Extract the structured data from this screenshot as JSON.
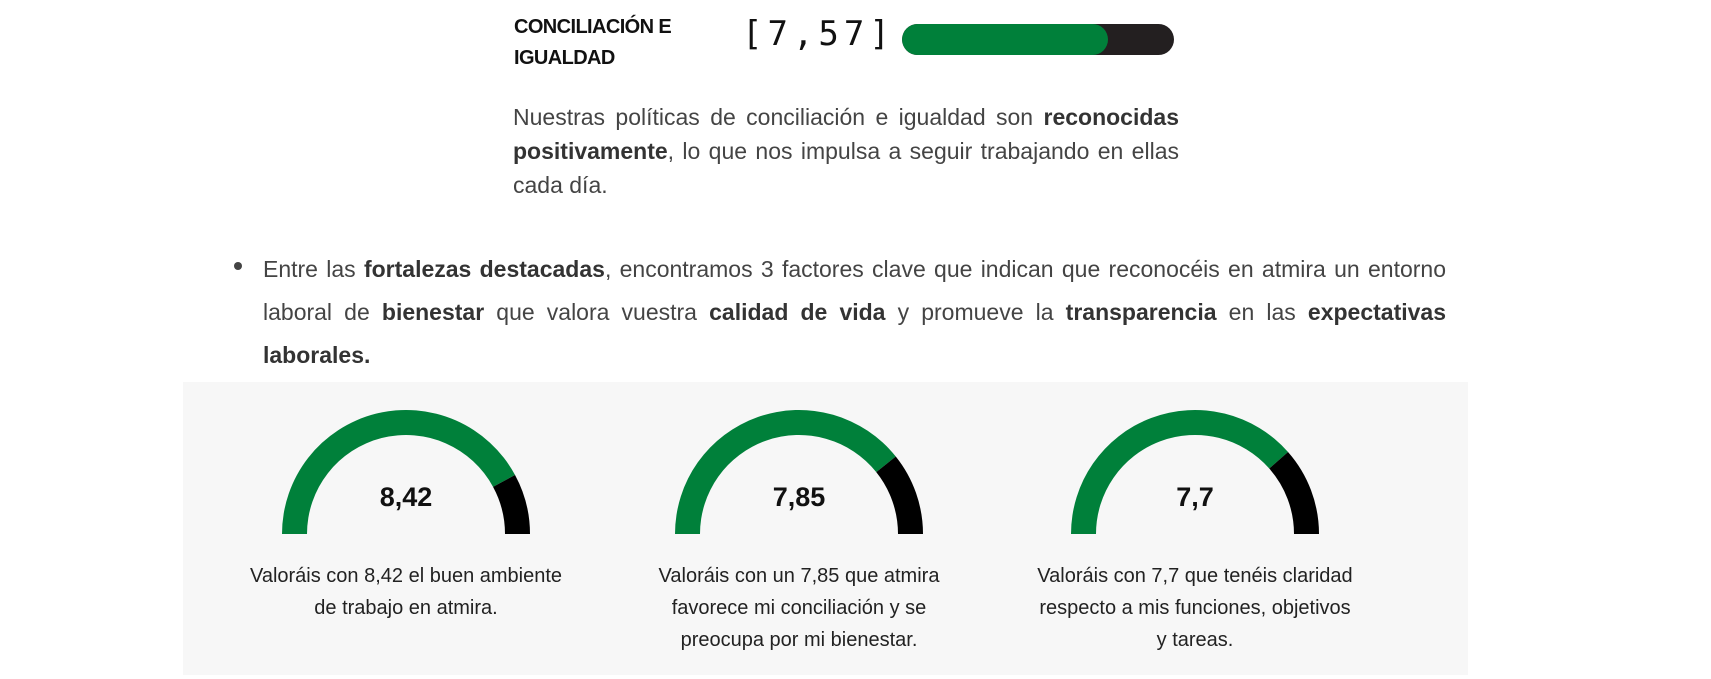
{
  "section": {
    "title": "CONCILIACIÓN E IGUALDAD",
    "score_label": "[7,57]",
    "score": 7.57,
    "score_max": 10,
    "paragraph": {
      "part1": "Nuestras políticas de conciliación e igualdad son ",
      "bold1": "reconocidas positivamente",
      "part2": ", lo que nos impulsa a seguir trabajando en ellas cada día."
    }
  },
  "bullet": {
    "t1": "Entre las ",
    "b1": "fortalezas destacadas",
    "t2": ", encontramos 3 factores clave que indican que reconocéis en atmira un entorno laboral de ",
    "b2": "bienestar",
    "t3": " que valora vuestra ",
    "b3": "calidad de vida",
    "t4": " y promueve la ",
    "b4": "transparencia",
    "t5": " en las ",
    "b5": "expectativas laborales."
  },
  "gauges": [
    {
      "value": 8.42,
      "label": "8,42",
      "caption": "Valoráis con 8,42 el buen ambiente de trabajo en atmira."
    },
    {
      "value": 7.85,
      "label": "7,85",
      "caption": "Valoráis con un 7,85 que atmira favorece mi conciliación y se preocupa por mi bienestar."
    },
    {
      "value": 7.7,
      "label": "7,7",
      "caption": "Valoráis con 7,7 que tenéis claridad respecto a mis funciones, objetivos y tareas."
    }
  ],
  "gauge_max": 10,
  "colors": {
    "accent": "#00803a",
    "track": "#000000",
    "bar_track": "#231f20"
  }
}
